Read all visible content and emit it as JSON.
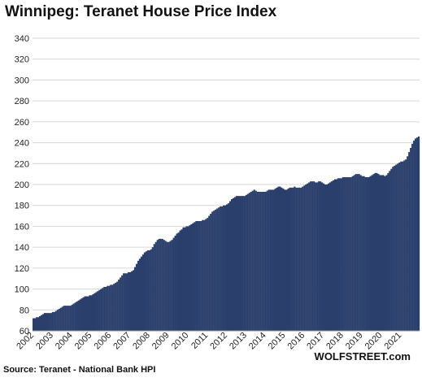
{
  "title": "Winnipeg: Teranet House Price Index",
  "source": "Source: Teranet - National Bank HPI",
  "brand": "WOLFSTREET.com",
  "colors": {
    "bar": "#2b3f6c",
    "bar_edge": "#1a2747",
    "grid": "#d6d6d6",
    "axis": "#888888"
  },
  "chart_data": {
    "type": "bar",
    "title": "Winnipeg: Teranet House Price Index",
    "xlabel": "",
    "ylabel": "",
    "ylim": [
      60,
      340
    ],
    "yticks": [
      60,
      80,
      100,
      120,
      140,
      160,
      180,
      200,
      220,
      240,
      260,
      280,
      300,
      320,
      340
    ],
    "xticks": [
      "2002",
      "2003",
      "2004",
      "2005",
      "2006",
      "2007",
      "2008",
      "2009",
      "2010",
      "2011",
      "2012",
      "2013",
      "2014",
      "2015",
      "2016",
      "2017",
      "2018",
      "2019",
      "2020",
      "2021"
    ],
    "grid": true,
    "frequency": "monthly",
    "categories": [
      "2002-01",
      "2002-02",
      "2002-03",
      "2002-04",
      "2002-05",
      "2002-06",
      "2002-07",
      "2002-08",
      "2002-09",
      "2002-10",
      "2002-11",
      "2002-12",
      "2003-01",
      "2003-02",
      "2003-03",
      "2003-04",
      "2003-05",
      "2003-06",
      "2003-07",
      "2003-08",
      "2003-09",
      "2003-10",
      "2003-11",
      "2003-12",
      "2004-01",
      "2004-02",
      "2004-03",
      "2004-04",
      "2004-05",
      "2004-06",
      "2004-07",
      "2004-08",
      "2004-09",
      "2004-10",
      "2004-11",
      "2004-12",
      "2005-01",
      "2005-02",
      "2005-03",
      "2005-04",
      "2005-05",
      "2005-06",
      "2005-07",
      "2005-08",
      "2005-09",
      "2005-10",
      "2005-11",
      "2005-12",
      "2006-01",
      "2006-02",
      "2006-03",
      "2006-04",
      "2006-05",
      "2006-06",
      "2006-07",
      "2006-08",
      "2006-09",
      "2006-10",
      "2006-11",
      "2006-12",
      "2007-01",
      "2007-02",
      "2007-03",
      "2007-04",
      "2007-05",
      "2007-06",
      "2007-07",
      "2007-08",
      "2007-09",
      "2007-10",
      "2007-11",
      "2007-12",
      "2008-01",
      "2008-02",
      "2008-03",
      "2008-04",
      "2008-05",
      "2008-06",
      "2008-07",
      "2008-08",
      "2008-09",
      "2008-10",
      "2008-11",
      "2008-12",
      "2009-01",
      "2009-02",
      "2009-03",
      "2009-04",
      "2009-05",
      "2009-06",
      "2009-07",
      "2009-08",
      "2009-09",
      "2009-10",
      "2009-11",
      "2009-12",
      "2010-01",
      "2010-02",
      "2010-03",
      "2010-04",
      "2010-05",
      "2010-06",
      "2010-07",
      "2010-08",
      "2010-09",
      "2010-10",
      "2010-11",
      "2010-12",
      "2011-01",
      "2011-02",
      "2011-03",
      "2011-04",
      "2011-05",
      "2011-06",
      "2011-07",
      "2011-08",
      "2011-09",
      "2011-10",
      "2011-11",
      "2011-12",
      "2012-01",
      "2012-02",
      "2012-03",
      "2012-04",
      "2012-05",
      "2012-06",
      "2012-07",
      "2012-08",
      "2012-09",
      "2012-10",
      "2012-11",
      "2012-12",
      "2013-01",
      "2013-02",
      "2013-03",
      "2013-04",
      "2013-05",
      "2013-06",
      "2013-07",
      "2013-08",
      "2013-09",
      "2013-10",
      "2013-11",
      "2013-12",
      "2014-01",
      "2014-02",
      "2014-03",
      "2014-04",
      "2014-05",
      "2014-06",
      "2014-07",
      "2014-08",
      "2014-09",
      "2014-10",
      "2014-11",
      "2014-12",
      "2015-01",
      "2015-02",
      "2015-03",
      "2015-04",
      "2015-05",
      "2015-06",
      "2015-07",
      "2015-08",
      "2015-09",
      "2015-10",
      "2015-11",
      "2015-12",
      "2016-01",
      "2016-02",
      "2016-03",
      "2016-04",
      "2016-05",
      "2016-06",
      "2016-07",
      "2016-08",
      "2016-09",
      "2016-10",
      "2016-11",
      "2016-12",
      "2017-01",
      "2017-02",
      "2017-03",
      "2017-04",
      "2017-05",
      "2017-06",
      "2017-07",
      "2017-08",
      "2017-09",
      "2017-10",
      "2017-11",
      "2017-12",
      "2018-01",
      "2018-02",
      "2018-03",
      "2018-04",
      "2018-05",
      "2018-06",
      "2018-07",
      "2018-08",
      "2018-09",
      "2018-10",
      "2018-11",
      "2018-12",
      "2019-01",
      "2019-02",
      "2019-03",
      "2019-04",
      "2019-05",
      "2019-06",
      "2019-07",
      "2019-08",
      "2019-09",
      "2019-10",
      "2019-11",
      "2019-12",
      "2020-01",
      "2020-02",
      "2020-03",
      "2020-04",
      "2020-05",
      "2020-06",
      "2020-07",
      "2020-08",
      "2020-09",
      "2020-10",
      "2020-11",
      "2020-12",
      "2021-01",
      "2021-02",
      "2021-03",
      "2021-04",
      "2021-05",
      "2021-06",
      "2021-07",
      "2021-08",
      "2021-09",
      "2021-10",
      "2021-11",
      "2021-12"
    ],
    "values": [
      72,
      72,
      73,
      73,
      74,
      75,
      76,
      77,
      77,
      77,
      77,
      77,
      78,
      78,
      79,
      80,
      81,
      82,
      83,
      84,
      84,
      84,
      84,
      84,
      85,
      86,
      87,
      88,
      89,
      90,
      91,
      92,
      93,
      93,
      93,
      94,
      94,
      95,
      96,
      97,
      98,
      99,
      100,
      101,
      102,
      102,
      103,
      103,
      104,
      104,
      105,
      106,
      107,
      109,
      111,
      113,
      115,
      115,
      115,
      116,
      116,
      117,
      118,
      121,
      124,
      127,
      129,
      131,
      133,
      135,
      136,
      137,
      137,
      138,
      140,
      143,
      145,
      147,
      148,
      148,
      148,
      147,
      146,
      145,
      145,
      146,
      147,
      149,
      151,
      153,
      154,
      156,
      157,
      159,
      159,
      160,
      160,
      161,
      162,
      163,
      164,
      165,
      165,
      165,
      165,
      166,
      166,
      167,
      168,
      170,
      172,
      174,
      175,
      176,
      177,
      178,
      179,
      179,
      180,
      180,
      181,
      182,
      184,
      186,
      187,
      188,
      189,
      189,
      189,
      189,
      189,
      189,
      190,
      191,
      192,
      193,
      194,
      195,
      194,
      193,
      193,
      193,
      193,
      193,
      193,
      194,
      195,
      195,
      195,
      195,
      196,
      197,
      198,
      198,
      197,
      196,
      195,
      195,
      196,
      197,
      197,
      197,
      198,
      197,
      197,
      197,
      197,
      198,
      199,
      200,
      201,
      202,
      203,
      203,
      203,
      202,
      202,
      203,
      203,
      202,
      201,
      200,
      200,
      201,
      202,
      203,
      204,
      205,
      205,
      206,
      206,
      206,
      207,
      207,
      207,
      207,
      207,
      207,
      208,
      209,
      210,
      210,
      210,
      209,
      208,
      208,
      207,
      207,
      207,
      208,
      209,
      210,
      211,
      211,
      210,
      209,
      209,
      209,
      208,
      209,
      211,
      213,
      215,
      217,
      218,
      219,
      220,
      221,
      222,
      222,
      223,
      224,
      227,
      231,
      235,
      239,
      242,
      244,
      245,
      246
    ]
  }
}
